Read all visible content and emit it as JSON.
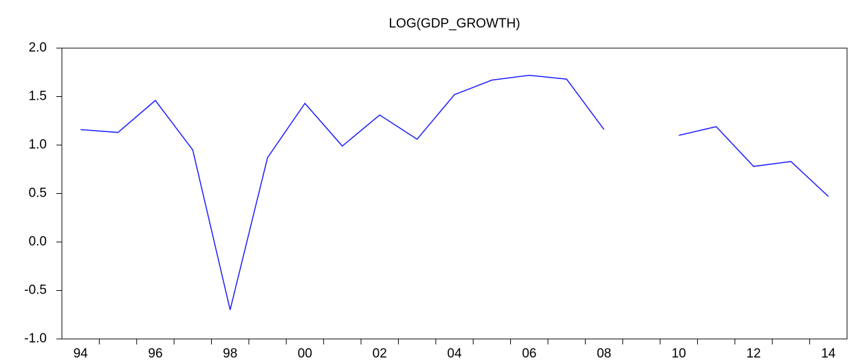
{
  "chart_data": {
    "type": "line",
    "title": "LOG(GDP_GROWTH)",
    "categories": [
      "94",
      null,
      "96",
      null,
      "98",
      null,
      "00",
      null,
      "02",
      null,
      "04",
      null,
      "06",
      null,
      "08",
      null,
      "10",
      null,
      "12",
      null,
      "14"
    ],
    "values": [
      1.16,
      1.13,
      1.46,
      0.95,
      -0.7,
      0.87,
      1.43,
      0.99,
      1.31,
      1.06,
      1.52,
      1.67,
      1.72,
      1.68,
      1.16,
      null,
      1.1,
      1.19,
      0.78,
      0.83,
      0.47
    ],
    "color": "#1c1cff",
    "ylim": [
      -1,
      2
    ],
    "yticks": [
      {
        "value": -1,
        "label": "-1.0"
      },
      {
        "value": -0.5,
        "label": "-0.5"
      },
      {
        "value": 0,
        "label": "0.0"
      },
      {
        "value": 0.5,
        "label": "0.5"
      },
      {
        "value": 1,
        "label": "1.0"
      },
      {
        "value": 1.5,
        "label": "1.5"
      },
      {
        "value": 2,
        "label": "2.0"
      }
    ],
    "grid": false
  }
}
